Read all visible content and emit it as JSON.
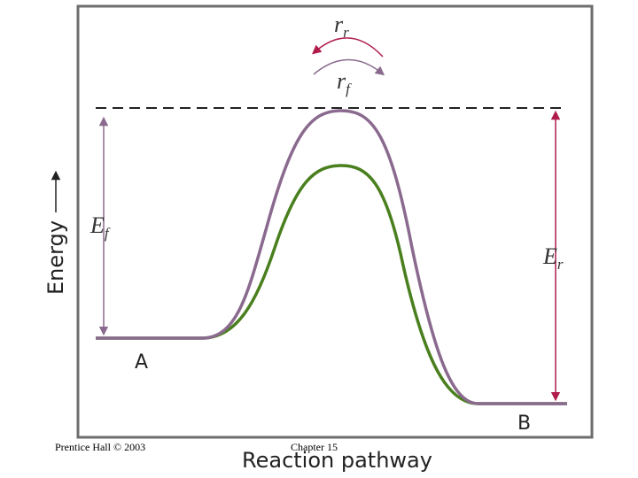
{
  "diagram": {
    "rate_reverse": {
      "main": "r",
      "sub": "r"
    },
    "rate_forward": {
      "main": "r",
      "sub": "f"
    },
    "energy_forward": {
      "main": "E",
      "sub": "f"
    },
    "energy_reverse": {
      "main": "E",
      "sub": "r"
    },
    "state_a": "A",
    "state_b": "B",
    "y_axis_label": "Energy",
    "x_axis_label": "Reaction pathway"
  },
  "footer": {
    "left": "Prentice Hall © 2003",
    "center": "Chapter 15"
  }
}
